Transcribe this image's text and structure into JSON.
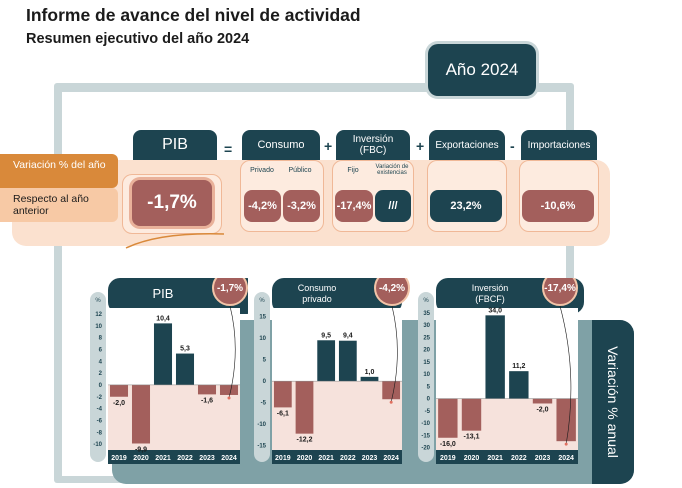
{
  "title": "Informe de avance del nivel de actividad",
  "subtitle": "Resumen ejecutivo del año 2024",
  "year_label": "Año 2024",
  "rows": {
    "annual": "Variación % del año",
    "previous": "Respecto al año anterior"
  },
  "operators": {
    "equals": "=",
    "plus1": "+",
    "plus2": "+",
    "minus": "-"
  },
  "components": {
    "pib": {
      "label": "PIB",
      "value": "-1,7%"
    },
    "consumo": {
      "label": "Consumo",
      "sub1": "Privado",
      "sub2": "Público",
      "v1": "-4,2%",
      "v2": "-3,2%"
    },
    "inversion": {
      "label": "Inversión",
      "label2": "(FBC)",
      "sub1": "Fijo",
      "sub2": "Variación de existencias",
      "v1": "-17,4%",
      "v2": "///"
    },
    "export": {
      "label": "Exportaciones",
      "value": "23,2%"
    },
    "import": {
      "label": "Importaciones",
      "value": "-10,6%"
    }
  },
  "side_label": "Variación % anual",
  "pct_symbol": "%",
  "chart_data": [
    {
      "type": "bar",
      "title": "PIB",
      "badge": "-1,7%",
      "categories": [
        "2019",
        "2020",
        "2021",
        "2022",
        "2023",
        "2024"
      ],
      "values": [
        -2.0,
        -9.9,
        10.4,
        5.3,
        -1.6,
        -1.7
      ],
      "labels": [
        "-2,0",
        "-9,9",
        "10,4",
        "5,3",
        "-1,6",
        ""
      ],
      "ticks": [
        "12",
        "10",
        "8",
        "6",
        "4",
        "2",
        "0",
        "-2",
        "-4",
        "-6",
        "-8",
        "-10"
      ],
      "ylim": [
        -11,
        13
      ]
    },
    {
      "type": "bar",
      "title": "Consumo privado",
      "badge": "-4,2%",
      "categories": [
        "2019",
        "2020",
        "2021",
        "2022",
        "2023",
        "2024"
      ],
      "values": [
        -6.1,
        -12.2,
        9.5,
        9.4,
        1.0,
        -4.2
      ],
      "labels": [
        "-6,1",
        "-12,2",
        "9,5",
        "9,4",
        "1,0",
        ""
      ],
      "ticks": [
        "15",
        "10",
        "5",
        "0",
        "-5",
        "-10",
        "-15"
      ],
      "ylim": [
        -16,
        17
      ]
    },
    {
      "type": "bar",
      "title": "Inversión (FBCF)",
      "badge": "-17,4%",
      "categories": [
        "2019",
        "2020",
        "2021",
        "2022",
        "2023",
        "2024"
      ],
      "values": [
        -16.0,
        -13.1,
        34.0,
        11.2,
        -2.0,
        -17.4
      ],
      "labels": [
        "-16,0",
        "-13,1",
        "34,0",
        "11,2",
        "-2,0",
        ""
      ],
      "ticks": [
        "35",
        "30",
        "25",
        "20",
        "15",
        "10",
        "5",
        "0",
        "-5",
        "-10",
        "-15",
        "-20"
      ],
      "ylim": [
        -21,
        37
      ]
    }
  ],
  "colors": {
    "positive": "#1d4450",
    "negative": "#a35f5c",
    "accent": "#d9893a"
  }
}
